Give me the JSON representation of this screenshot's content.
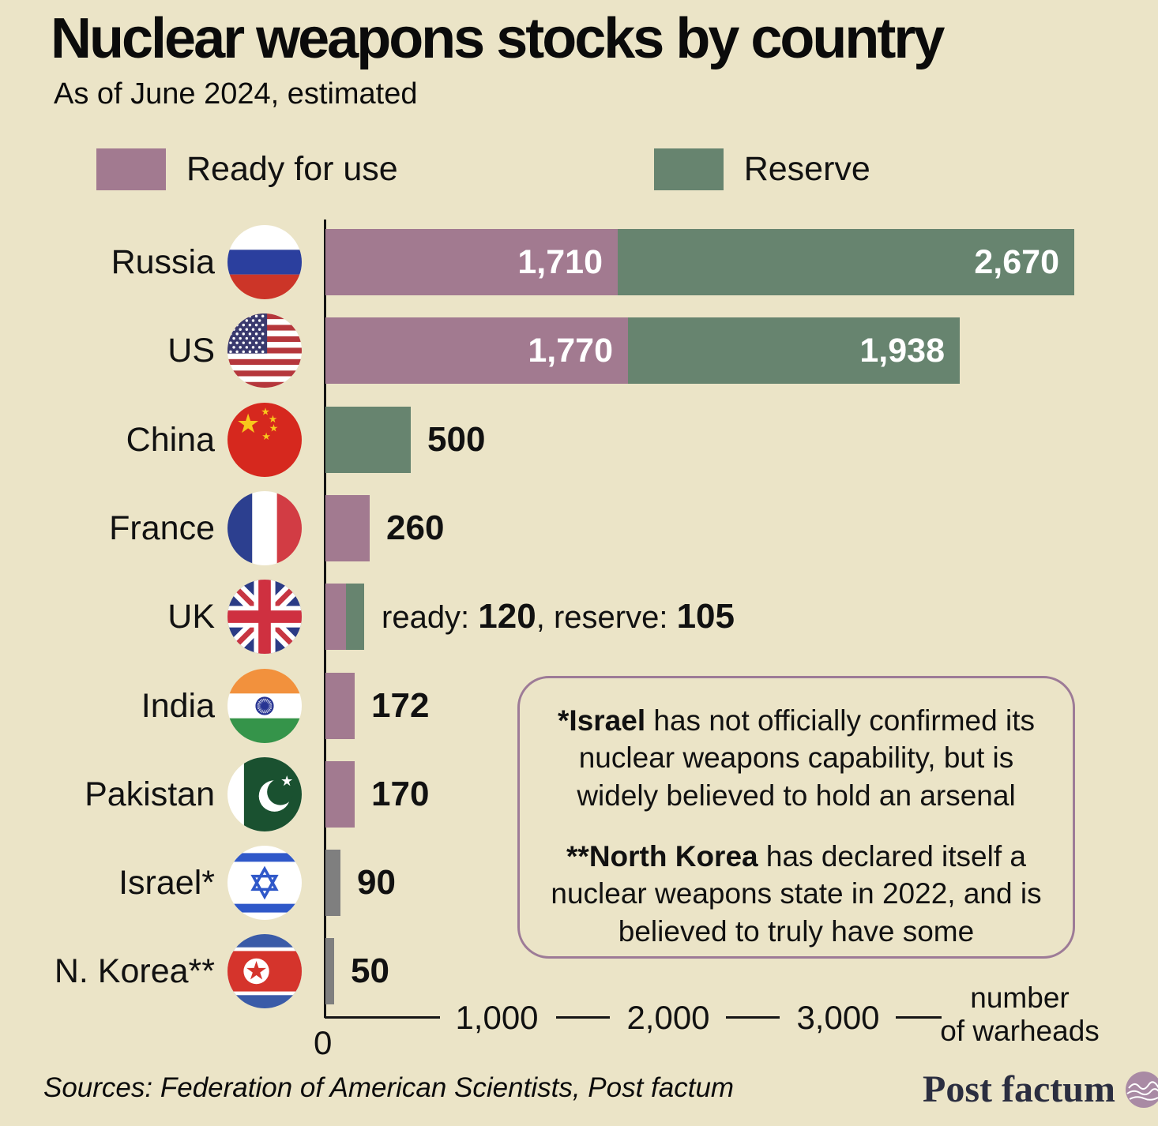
{
  "title": "Nuclear weapons stocks by country",
  "subtitle": "As of June 2024, estimated",
  "legend": [
    {
      "label": "Ready for use",
      "color": "#a27a90"
    },
    {
      "label": "Reserve",
      "color": "#67846f"
    }
  ],
  "colors": {
    "background": "#ebe4c7",
    "ready": "#a27a90",
    "reserve": "#67846f",
    "undisclosed": "#7f7f7f",
    "annotation_border": "#9d7b97"
  },
  "chart_data": {
    "type": "bar",
    "orientation": "horizontal",
    "title": "Nuclear weapons stocks by country",
    "subtitle": "As of June 2024, estimated",
    "xlabel": "number of warheads",
    "xlim": [
      0,
      4600
    ],
    "x_ticks": [
      "0",
      "1,000",
      "2,000",
      "3,000"
    ],
    "unit_line1": "number",
    "unit_line2": "of warheads",
    "legend_entries": [
      "Ready for use",
      "Reserve"
    ],
    "series": [
      {
        "country": "Russia",
        "flag": "russia",
        "segments": [
          {
            "kind": "ready",
            "value": 1710,
            "label": "1,710"
          },
          {
            "kind": "reserve",
            "value": 2670,
            "label": "2,670"
          }
        ]
      },
      {
        "country": "US",
        "flag": "us",
        "segments": [
          {
            "kind": "ready",
            "value": 1770,
            "label": "1,770"
          },
          {
            "kind": "reserve",
            "value": 1938,
            "label": "1,938"
          }
        ]
      },
      {
        "country": "China",
        "flag": "china",
        "segments": [
          {
            "kind": "reserve",
            "value": 500
          }
        ],
        "value_label": "500"
      },
      {
        "country": "France",
        "flag": "france",
        "segments": [
          {
            "kind": "ready",
            "value": 260
          }
        ],
        "value_label": "260"
      },
      {
        "country": "UK",
        "flag": "uk",
        "segments": [
          {
            "kind": "ready",
            "value": 120
          },
          {
            "kind": "reserve",
            "value": 105
          }
        ],
        "value_label_parts": [
          {
            "text": "ready: ",
            "bold": false
          },
          {
            "text": "120",
            "bold": true
          },
          {
            "text": ", reserve: ",
            "bold": false
          },
          {
            "text": "105",
            "bold": true
          }
        ]
      },
      {
        "country": "India",
        "flag": "india",
        "segments": [
          {
            "kind": "ready",
            "value": 172
          }
        ],
        "value_label": "172"
      },
      {
        "country": "Pakistan",
        "flag": "pakistan",
        "segments": [
          {
            "kind": "ready",
            "value": 170
          }
        ],
        "value_label": "170"
      },
      {
        "country": "Israel*",
        "flag": "israel",
        "segments": [
          {
            "kind": "undisclosed",
            "value": 90
          }
        ],
        "value_label": "90"
      },
      {
        "country": "N. Korea**",
        "flag": "nkorea",
        "segments": [
          {
            "kind": "undisclosed",
            "value": 50
          }
        ],
        "value_label": "50"
      }
    ]
  },
  "annotation": {
    "p1_bold": "*Israel",
    "p1_rest": " has not officially confirmed its nuclear weapons capability, but is widely believed to hold an arsenal",
    "p2_bold": "**North Korea",
    "p2_rest": " has declared itself a nuclear weapons state in 2022, and is believed to truly have some"
  },
  "footer": {
    "sources": "Sources: Federation of American Scientists, Post factum",
    "logo_text": "Post factum"
  }
}
